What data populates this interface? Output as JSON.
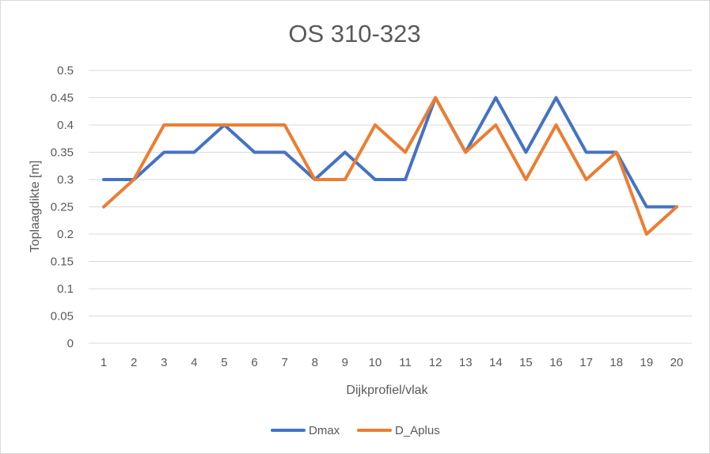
{
  "chart_data": {
    "type": "line",
    "title": "OS 310-323",
    "xlabel": "Dijkprofiel/vlak",
    "ylabel": "Toplaagdikte [m]",
    "categories": [
      "1",
      "2",
      "3",
      "4",
      "5",
      "6",
      "7",
      "8",
      "9",
      "10",
      "11",
      "12",
      "13",
      "14",
      "15",
      "16",
      "17",
      "18",
      "19",
      "20"
    ],
    "ylim": [
      0,
      0.5
    ],
    "yticks": [
      0,
      0.05,
      0.1,
      0.15,
      0.2,
      0.25,
      0.3,
      0.35,
      0.4,
      0.45,
      0.5
    ],
    "ytick_labels": [
      "0",
      "0.05",
      "0.1",
      "0.15",
      "0.2",
      "0.25",
      "0.3",
      "0.35",
      "0.4",
      "0.45",
      "0.5"
    ],
    "grid": true,
    "legend_position": "bottom",
    "series": [
      {
        "name": "Dmax",
        "color": "#4472c4",
        "values": [
          0.3,
          0.3,
          0.35,
          0.35,
          0.4,
          0.35,
          0.35,
          0.3,
          0.35,
          0.3,
          0.3,
          0.45,
          0.35,
          0.45,
          0.35,
          0.45,
          0.35,
          0.35,
          0.25,
          0.25
        ]
      },
      {
        "name": "D_Aplus",
        "color": "#ed7d31",
        "values": [
          0.25,
          0.3,
          0.4,
          0.4,
          0.4,
          0.4,
          0.4,
          0.3,
          0.3,
          0.4,
          0.35,
          0.45,
          0.35,
          0.4,
          0.3,
          0.4,
          0.3,
          0.35,
          0.2,
          0.25
        ]
      }
    ]
  }
}
